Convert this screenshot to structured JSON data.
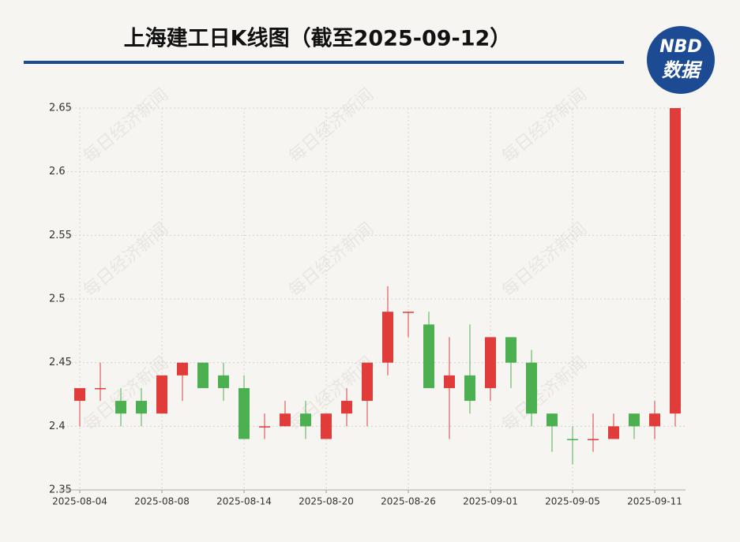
{
  "chart_data": {
    "type": "candlestick",
    "title": "上海建工日K线图（截至2025-09-12）",
    "logo": {
      "top": "NBD",
      "bottom": "数据"
    },
    "watermark": "每日经济新闻",
    "categories": [
      "2025-08-04",
      null,
      null,
      null,
      "2025-08-08",
      null,
      null,
      null,
      "2025-08-14",
      null,
      null,
      null,
      "2025-08-20",
      null,
      null,
      null,
      "2025-08-26",
      null,
      null,
      null,
      "2025-09-01",
      null,
      null,
      null,
      "2025-09-05",
      null,
      null,
      null,
      "2025-09-11",
      null
    ],
    "open": [
      2.42,
      2.43,
      2.42,
      2.42,
      2.41,
      2.44,
      2.45,
      2.44,
      2.43,
      2.4,
      2.4,
      2.41,
      2.39,
      2.41,
      2.42,
      2.45,
      2.49,
      2.48,
      2.43,
      2.44,
      2.43,
      2.47,
      2.45,
      2.41,
      2.39,
      2.39,
      2.39,
      2.41,
      2.4,
      2.41
    ],
    "high": [
      2.43,
      2.45,
      2.43,
      2.43,
      2.44,
      2.45,
      2.45,
      2.45,
      2.44,
      2.41,
      2.42,
      2.42,
      2.41,
      2.43,
      2.45,
      2.51,
      2.49,
      2.49,
      2.47,
      2.48,
      2.47,
      2.47,
      2.46,
      2.41,
      2.4,
      2.41,
      2.41,
      2.41,
      2.42,
      2.65
    ],
    "low": [
      2.4,
      2.42,
      2.4,
      2.4,
      2.41,
      2.42,
      2.43,
      2.42,
      2.39,
      2.39,
      2.4,
      2.39,
      2.39,
      2.4,
      2.4,
      2.44,
      2.47,
      2.43,
      2.39,
      2.41,
      2.42,
      2.43,
      2.4,
      2.38,
      2.37,
      2.38,
      2.39,
      2.39,
      2.39,
      2.4
    ],
    "close": [
      2.43,
      2.43,
      2.41,
      2.41,
      2.44,
      2.45,
      2.43,
      2.43,
      2.39,
      2.4,
      2.41,
      2.4,
      2.41,
      2.42,
      2.45,
      2.49,
      2.49,
      2.43,
      2.44,
      2.42,
      2.47,
      2.45,
      2.41,
      2.4,
      2.39,
      2.39,
      2.4,
      2.4,
      2.41,
      2.65
    ],
    "up_color": "#e03c3a",
    "down_color": "#4caf50",
    "ylim": [
      2.35,
      2.65
    ],
    "yticks": [
      2.35,
      2.4,
      2.45,
      2.5,
      2.55,
      2.6,
      2.65
    ],
    "grid": true
  }
}
